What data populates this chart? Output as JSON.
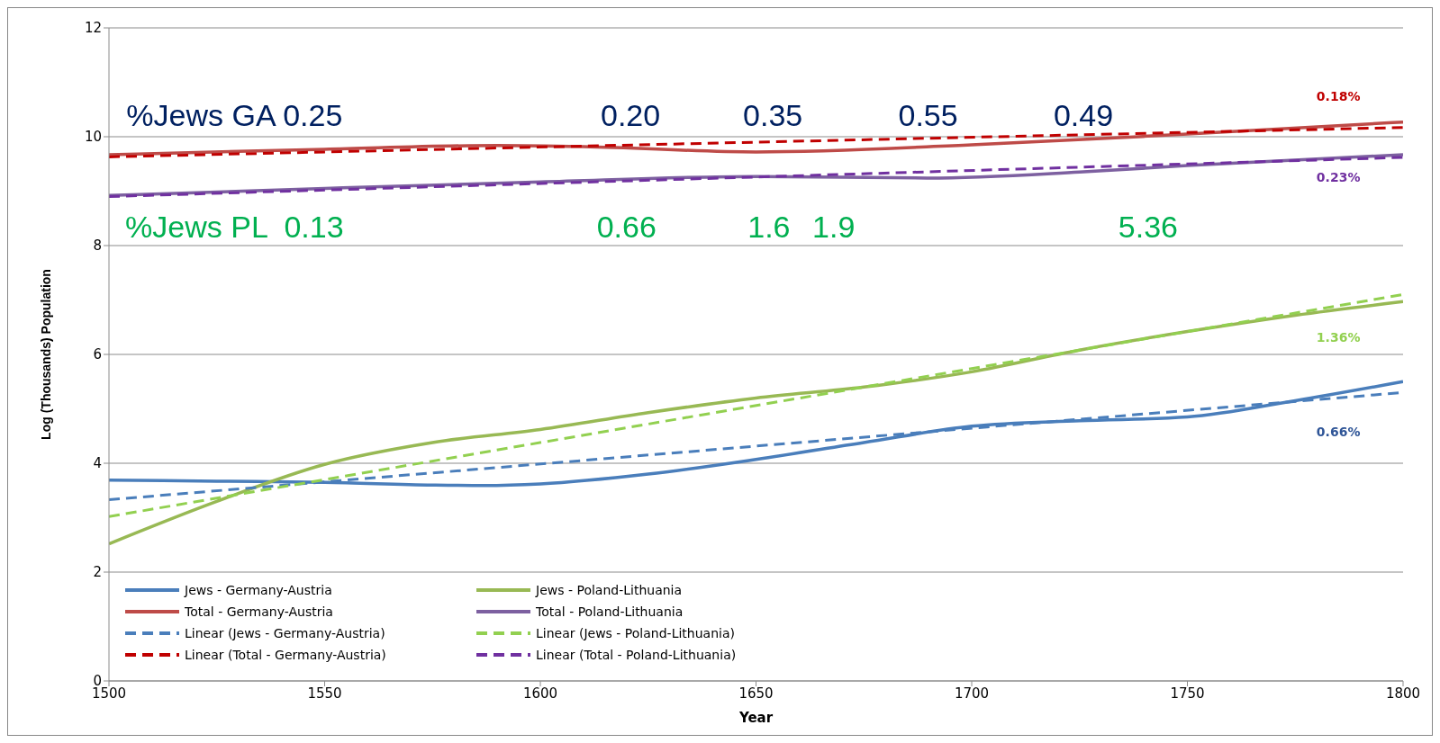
{
  "chart_data": {
    "type": "line",
    "xlabel": "Year",
    "ylabel": "Log (Thousands) Population",
    "xlim": [
      1500,
      1800
    ],
    "xticks": [
      1500,
      1550,
      1600,
      1650,
      1700,
      1750,
      1800
    ],
    "ylim": [
      0,
      12
    ],
    "yticks": [
      0,
      2,
      4,
      6,
      8,
      10,
      12
    ],
    "grid": "y",
    "legend": "bottom left",
    "marker": "none",
    "series": [
      {
        "name": "Jews - Germany-Austria",
        "color": "#4a7ebb",
        "line_style": "solid",
        "x": [
          1500,
          1525,
          1550,
          1575,
          1587,
          1600,
          1625,
          1650,
          1675,
          1700,
          1725,
          1750,
          1775,
          1800
        ],
        "values": [
          3.69,
          3.67,
          3.65,
          3.6,
          3.59,
          3.62,
          3.8,
          4.07,
          4.38,
          4.68,
          4.78,
          4.85,
          5.15,
          5.5
        ]
      },
      {
        "name": "Jews - Poland-Lithuania",
        "color": "#98b954",
        "line_style": "solid",
        "x": [
          1500,
          1525,
          1550,
          1575,
          1600,
          1625,
          1650,
          1675,
          1700,
          1725,
          1750,
          1775,
          1800
        ],
        "values": [
          2.52,
          3.3,
          3.98,
          4.38,
          4.62,
          4.93,
          5.2,
          5.4,
          5.68,
          6.08,
          6.42,
          6.72,
          6.97
        ]
      },
      {
        "name": "Total - Germany-Austria",
        "color": "#be4b48",
        "line_style": "solid",
        "x": [
          1500,
          1550,
          1590,
          1610,
          1650,
          1700,
          1750,
          1800
        ],
        "values": [
          9.67,
          9.77,
          9.84,
          9.82,
          9.72,
          9.85,
          10.05,
          10.27
        ]
      },
      {
        "name": "Total - Poland-Lithuania",
        "color": "#7d60a0",
        "line_style": "solid",
        "x": [
          1500,
          1550,
          1600,
          1650,
          1690,
          1725,
          1750,
          1800
        ],
        "values": [
          8.92,
          9.05,
          9.17,
          9.27,
          9.24,
          9.35,
          9.47,
          9.67
        ]
      },
      {
        "name": "Linear (Jews - Germany-Austria)",
        "color": "#4a7ebb",
        "line_style": "dashed",
        "x": [
          1500,
          1800
        ],
        "values": [
          3.33,
          5.3
        ]
      },
      {
        "name": "Linear (Jews - Poland-Lithuania)",
        "color": "#92d050",
        "line_style": "dashed",
        "x": [
          1500,
          1800
        ],
        "values": [
          3.02,
          7.1
        ]
      },
      {
        "name": "Linear (Total - Germany-Austria)",
        "color": "#c00000",
        "line_style": "dashed",
        "x": [
          1500,
          1800
        ],
        "values": [
          9.63,
          10.17
        ]
      },
      {
        "name": "Linear (Total - Poland-Lithuania)",
        "color": "#7030a0",
        "line_style": "dashed",
        "x": [
          1500,
          1800
        ],
        "values": [
          8.9,
          9.62
        ]
      }
    ],
    "annotations": [
      "%Jews GA 0.25",
      "0.20",
      "0.35",
      "0.55",
      "0.49",
      "%Jews PL  0.13",
      "0.66",
      "1.6",
      "1.9",
      "5.36",
      "0.18%",
      "0.23%",
      "1.36%",
      "0.66%"
    ]
  }
}
